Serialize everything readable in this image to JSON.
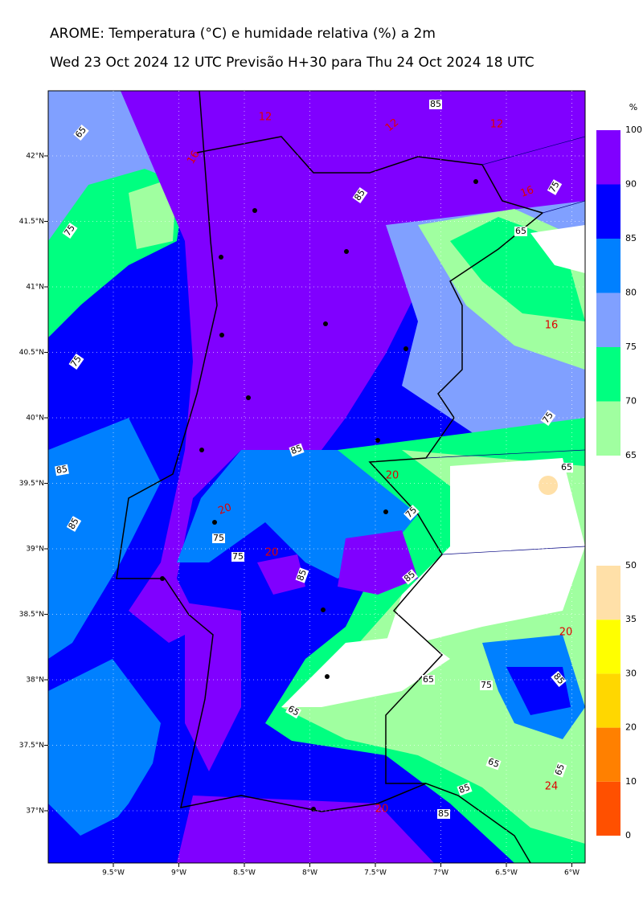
{
  "map": {
    "title": "AROME: Temperatura (°C) e humidade relativa (%) a 2m",
    "subtitle": "Wed 23 Oct 2024 12 UTC Previsão H+30 para Thu 24 Oct 2024 18 UTC",
    "lon_ticks": [
      "9.5°W",
      "9°W",
      "8.5°W",
      "8°W",
      "7.5°W",
      "7°W",
      "6.5°W",
      "6°W"
    ],
    "lat_ticks": [
      "42°N",
      "41.5°N",
      "41°N",
      "40.5°N",
      "40°N",
      "39.5°N",
      "39°N",
      "38.5°N",
      "38°N",
      "37.5°N",
      "37°N"
    ],
    "humidity_colorbar": {
      "unit": "%",
      "levels": [
        65,
        70,
        75,
        80,
        85,
        90,
        100
      ],
      "colors": [
        "#a0ffa0",
        "#00ff80",
        "#80a0ff",
        "#0080ff",
        "#0000ff",
        "#8000ff"
      ]
    },
    "temperature_colorbar": {
      "levels": [
        0,
        10,
        20,
        30,
        35,
        50
      ],
      "colors": [
        "#ff5000",
        "#ff8000",
        "#ffd700",
        "#ffff00",
        "#ffe0a8"
      ]
    },
    "humidity_contour_labels": [
      "65",
      "75",
      "75",
      "85",
      "85",
      "85",
      "85",
      "75",
      "65",
      "85",
      "75",
      "75",
      "85",
      "75",
      "85",
      "65",
      "75",
      "65",
      "75",
      "85",
      "65",
      "65",
      "65",
      "85",
      "85"
    ],
    "temperature_contour_labels": [
      "12",
      "12",
      "12",
      "16",
      "16",
      "16",
      "20",
      "20",
      "20",
      "20",
      "24",
      "20"
    ]
  }
}
